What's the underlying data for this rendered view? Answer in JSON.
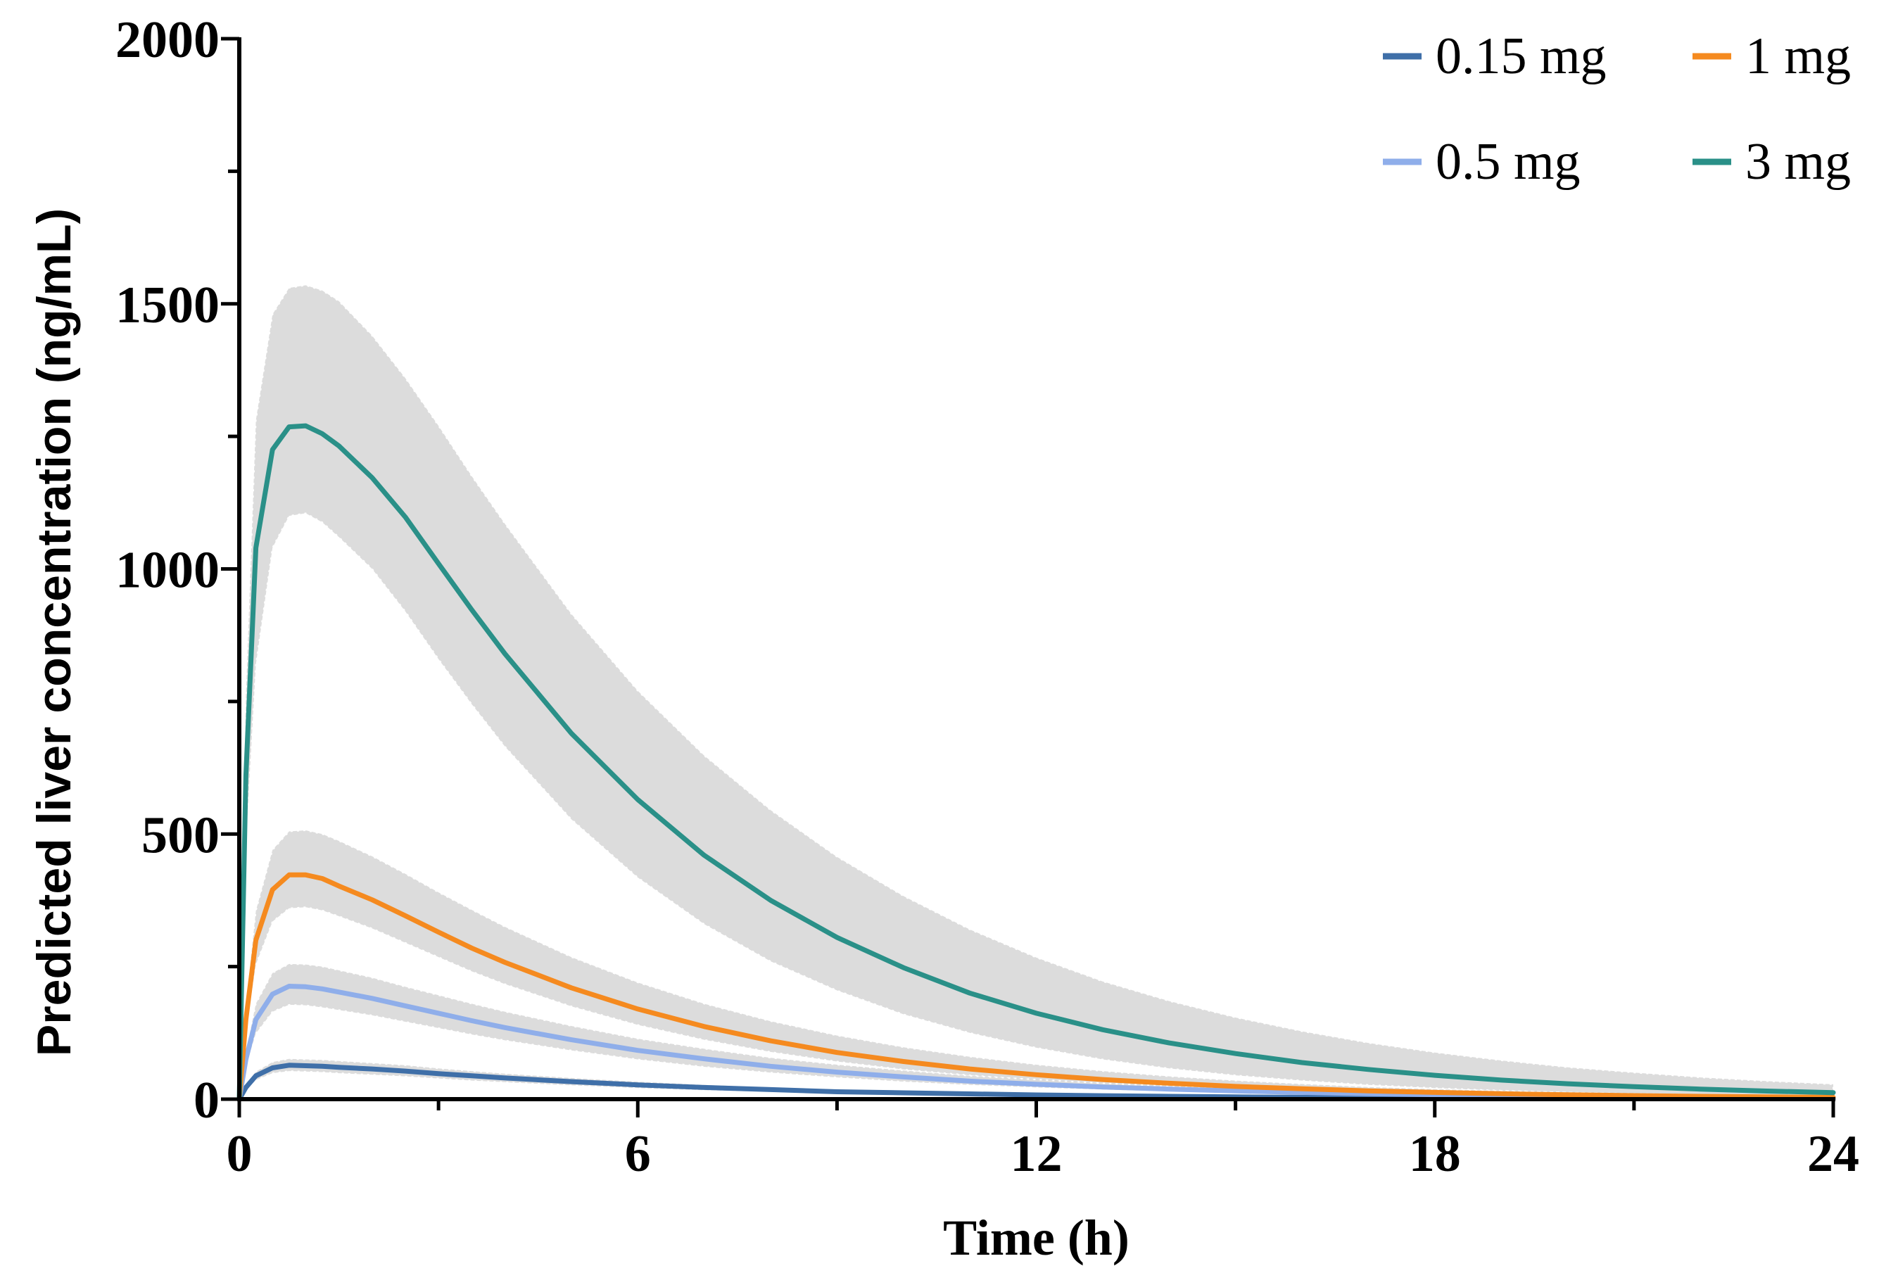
{
  "chart_data": {
    "type": "line",
    "title": "",
    "xlabel": "Time (h)",
    "ylabel": "Predicted liver concentration (ng/mL)",
    "xlim": [
      0,
      24
    ],
    "ylim": [
      0,
      2000
    ],
    "xticks": [
      0,
      6,
      12,
      18,
      24
    ],
    "xtick_labels": [
      "0",
      "6",
      "12",
      "18",
      "24"
    ],
    "yticks": [
      0,
      500,
      1000,
      1500,
      2000
    ],
    "ytick_labels": [
      "0",
      "500",
      "1000",
      "1500",
      "2000"
    ],
    "grid": false,
    "legend_position": "top-right",
    "band_color": "#dcdcdc",
    "x": [
      0,
      0.1,
      0.25,
      0.5,
      0.75,
      1,
      1.25,
      1.5,
      2,
      2.5,
      3,
      3.5,
      4,
      5,
      6,
      7,
      8,
      9,
      10,
      11,
      12,
      13,
      14,
      15,
      16,
      17,
      18,
      19,
      20,
      21,
      22,
      23,
      24
    ],
    "series": [
      {
        "name": "0.15 mg",
        "color": "#3f6fa8",
        "values": [
          0,
          22,
          44,
          59,
          64,
          63,
          62,
          60,
          57,
          53,
          48,
          44,
          40,
          33,
          27,
          22,
          18,
          14,
          12,
          10,
          8,
          6.5,
          5.3,
          4.3,
          3.5,
          2.9,
          2.4,
          2,
          1.6,
          1.3,
          1.1,
          0.9,
          0.7
        ],
        "upper": [
          0,
          26,
          52,
          70,
          76,
          75,
          74,
          72,
          68,
          64,
          58,
          53,
          48,
          40,
          33,
          27,
          22,
          18,
          15,
          12,
          10,
          8,
          6.6,
          5.4,
          4.4,
          3.6,
          3,
          2.5,
          2,
          1.7,
          1.4,
          1.1,
          0.9
        ],
        "lower": [
          0,
          18,
          36,
          49,
          53,
          52,
          51,
          49,
          46,
          43,
          39,
          35,
          32,
          26,
          21,
          17,
          14,
          11,
          9,
          7.5,
          6,
          5,
          4,
          3.3,
          2.7,
          2.2,
          1.8,
          1.5,
          1.2,
          1,
          0.8,
          0.7,
          0.6
        ]
      },
      {
        "name": "0.5 mg",
        "color": "#8faeea",
        "values": [
          0,
          75,
          150,
          198,
          213,
          212,
          208,
          202,
          190,
          176,
          162,
          148,
          135,
          112,
          92,
          76,
          62,
          51,
          42,
          34,
          28,
          23,
          19,
          15.5,
          12.7,
          10.4,
          8.5,
          7,
          5.7,
          4.7,
          3.8,
          3.1,
          2.6
        ],
        "upper": [
          0,
          90,
          180,
          238,
          255,
          254,
          250,
          243,
          229,
          212,
          196,
          180,
          165,
          138,
          114,
          95,
          78,
          65,
          54,
          44,
          37,
          30,
          25,
          21,
          17,
          14,
          11.5,
          9.5,
          7.8,
          6.4,
          5.3,
          4.4,
          3.6
        ],
        "lower": [
          0,
          62,
          124,
          165,
          178,
          177,
          173,
          168,
          158,
          146,
          134,
          122,
          111,
          92,
          75,
          61,
          50,
          41,
          33,
          27,
          22,
          18,
          14.7,
          12,
          9.8,
          8,
          6.5,
          5.3,
          4.3,
          3.5,
          2.9,
          2.3,
          1.9
        ]
      },
      {
        "name": "1 mg",
        "color": "#f58a1f",
        "values": [
          0,
          150,
          300,
          395,
          423,
          423,
          416,
          402,
          376,
          346,
          315,
          285,
          258,
          210,
          170,
          137,
          110,
          88,
          71,
          57,
          46,
          37,
          30,
          24,
          19.5,
          15.7,
          12.7,
          10.2,
          8.2,
          6.6,
          5.3,
          4.3,
          3.5
        ],
        "upper": [
          0,
          178,
          355,
          470,
          505,
          507,
          500,
          487,
          458,
          425,
          390,
          357,
          325,
          268,
          220,
          180,
          147,
          120,
          98,
          80,
          65,
          53,
          43,
          35,
          28.5,
          23,
          19,
          15.5,
          12.6,
          10.2,
          8.3,
          6.8,
          5.5
        ],
        "lower": [
          0,
          127,
          254,
          335,
          360,
          362,
          356,
          345,
          322,
          295,
          268,
          241,
          217,
          175,
          140,
          112,
          89,
          71,
          56,
          45,
          36,
          29,
          23,
          18.3,
          14.6,
          11.6,
          9.3,
          7.4,
          5.9,
          4.7,
          3.7,
          3,
          2.4
        ]
      },
      {
        "name": "3 mg",
        "color": "#2a9088",
        "values": [
          0,
          610,
          1040,
          1225,
          1268,
          1270,
          1255,
          1232,
          1172,
          1098,
          1010,
          923,
          840,
          690,
          565,
          460,
          375,
          305,
          248,
          200,
          162,
          131,
          106,
          86,
          69,
          56,
          45,
          36,
          29,
          23.5,
          19,
          15.3,
          12.3
        ],
        "upper": [
          0,
          760,
          1280,
          1480,
          1530,
          1535,
          1525,
          1505,
          1440,
          1360,
          1270,
          1175,
          1085,
          915,
          770,
          648,
          545,
          457,
          383,
          320,
          267,
          222,
          185,
          154,
          128,
          106,
          88,
          73,
          60,
          50,
          41,
          34,
          28
        ],
        "lower": [
          0,
          480,
          820,
          1040,
          1100,
          1105,
          1088,
          1060,
          1000,
          920,
          830,
          745,
          665,
          528,
          418,
          330,
          260,
          205,
          160,
          125,
          97,
          75,
          58,
          45,
          35,
          27,
          21,
          16,
          12.5,
          9.7,
          7.5,
          5.8,
          4.5
        ]
      }
    ]
  }
}
